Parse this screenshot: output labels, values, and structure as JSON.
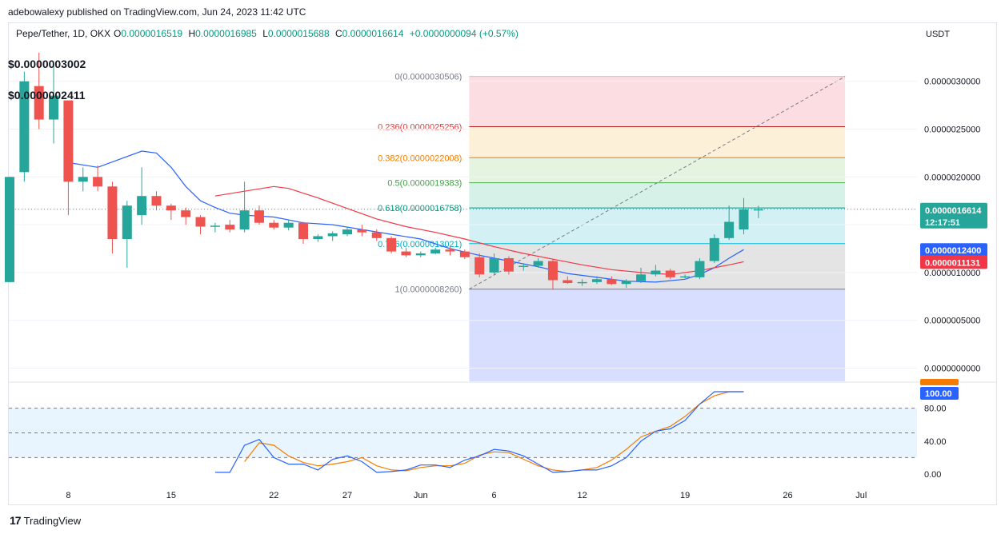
{
  "header": {
    "published": "adebowalexy published on TradingView.com, Jun 24, 2023 11:42 UTC"
  },
  "legend": {
    "symbol": "Pepe/Tether, 1D, OKX",
    "o_label": "O",
    "o_value": "0.0000016519",
    "h_label": "H",
    "h_value": "0.0000016985",
    "l_label": "L",
    "l_value": "0.0000015688",
    "c_label": "C",
    "c_value": "0.0000016614",
    "change": "+0.0000000094 (+0.57%)",
    "ind1": "$0.0000003002",
    "ind2": "$0.0000002411"
  },
  "currency": "USDT",
  "footer": {
    "brand": "TradingView",
    "icon": "tradingview-logo-icon"
  },
  "colors": {
    "up": "#26a69a",
    "down": "#ef5350",
    "ma_blue": "#2962ff",
    "ma_red": "#f23645",
    "stoch_k": "#2962ff",
    "stoch_d": "#f57c00"
  },
  "price_labels": {
    "last": "0.0000016614",
    "countdown": "12:17:51",
    "blue_ma": "0.0000012400",
    "red_ma": "0.0000011131"
  },
  "osc_label": "100.00",
  "chart_data": {
    "type": "candlestick",
    "price_axis": {
      "ticks": [
        {
          "value": 3.0,
          "label": "0.0000030000"
        },
        {
          "value": 2.5,
          "label": "0.0000025000"
        },
        {
          "value": 2.0,
          "label": "0.0000020000"
        },
        {
          "value": 1.5,
          "label": "0.0000015000"
        },
        {
          "value": 1.0,
          "label": "0.0000010000"
        },
        {
          "value": 0.5,
          "label": "0.0000005000"
        },
        {
          "value": 0.0,
          "label": "0.0000000000"
        }
      ]
    },
    "time_axis": {
      "ticks": [
        {
          "i": 4,
          "label": "8"
        },
        {
          "i": 11,
          "label": "15"
        },
        {
          "i": 18,
          "label": "22"
        },
        {
          "i": 23,
          "label": "27"
        },
        {
          "i": 28,
          "label": "Jun"
        },
        {
          "i": 33,
          "label": "6"
        },
        {
          "i": 39,
          "label": "12"
        },
        {
          "i": 46,
          "label": "19"
        },
        {
          "i": 53,
          "label": "26"
        },
        {
          "i": 58,
          "label": "Jul"
        }
      ]
    },
    "candles_note": "o/h/l/c in units of 1e-6 USDT",
    "candles": [
      {
        "o": 0.9,
        "h": 2.0,
        "l": 0.9,
        "c": 2.0
      },
      {
        "o": 2.05,
        "h": 3.1,
        "l": 1.95,
        "c": 3.0
      },
      {
        "o": 2.95,
        "h": 3.3,
        "l": 2.5,
        "c": 2.6
      },
      {
        "o": 2.6,
        "h": 3.2,
        "l": 2.35,
        "c": 2.85
      },
      {
        "o": 2.8,
        "h": 2.8,
        "l": 1.6,
        "c": 1.95
      },
      {
        "o": 1.95,
        "h": 2.1,
        "l": 1.85,
        "c": 2.0
      },
      {
        "o": 2.0,
        "h": 2.12,
        "l": 1.85,
        "c": 1.9
      },
      {
        "o": 1.9,
        "h": 1.95,
        "l": 1.2,
        "c": 1.35
      },
      {
        "o": 1.35,
        "h": 1.75,
        "l": 1.05,
        "c": 1.7
      },
      {
        "o": 1.6,
        "h": 2.1,
        "l": 1.5,
        "c": 1.8
      },
      {
        "o": 1.8,
        "h": 1.85,
        "l": 1.65,
        "c": 1.7
      },
      {
        "o": 1.7,
        "h": 1.72,
        "l": 1.55,
        "c": 1.65
      },
      {
        "o": 1.65,
        "h": 1.68,
        "l": 1.5,
        "c": 1.58
      },
      {
        "o": 1.58,
        "h": 1.6,
        "l": 1.4,
        "c": 1.48
      },
      {
        "o": 1.48,
        "h": 1.52,
        "l": 1.42,
        "c": 1.49
      },
      {
        "o": 1.5,
        "h": 1.55,
        "l": 1.42,
        "c": 1.45
      },
      {
        "o": 1.45,
        "h": 1.95,
        "l": 1.42,
        "c": 1.65
      },
      {
        "o": 1.65,
        "h": 1.7,
        "l": 1.5,
        "c": 1.52
      },
      {
        "o": 1.52,
        "h": 1.55,
        "l": 1.45,
        "c": 1.47
      },
      {
        "o": 1.47,
        "h": 1.55,
        "l": 1.44,
        "c": 1.52
      },
      {
        "o": 1.52,
        "h": 1.53,
        "l": 1.3,
        "c": 1.35
      },
      {
        "o": 1.35,
        "h": 1.4,
        "l": 1.32,
        "c": 1.38
      },
      {
        "o": 1.38,
        "h": 1.43,
        "l": 1.33,
        "c": 1.41
      },
      {
        "o": 1.4,
        "h": 1.48,
        "l": 1.38,
        "c": 1.45
      },
      {
        "o": 1.45,
        "h": 1.5,
        "l": 1.38,
        "c": 1.42
      },
      {
        "o": 1.42,
        "h": 1.45,
        "l": 1.33,
        "c": 1.36
      },
      {
        "o": 1.36,
        "h": 1.38,
        "l": 1.2,
        "c": 1.22
      },
      {
        "o": 1.22,
        "h": 1.26,
        "l": 1.16,
        "c": 1.18
      },
      {
        "o": 1.18,
        "h": 1.22,
        "l": 1.16,
        "c": 1.2
      },
      {
        "o": 1.2,
        "h": 1.26,
        "l": 1.19,
        "c": 1.24
      },
      {
        "o": 1.24,
        "h": 1.27,
        "l": 1.18,
        "c": 1.22
      },
      {
        "o": 1.22,
        "h": 1.24,
        "l": 1.14,
        "c": 1.16
      },
      {
        "o": 1.16,
        "h": 1.2,
        "l": 0.95,
        "c": 0.98
      },
      {
        "o": 1.0,
        "h": 1.2,
        "l": 0.97,
        "c": 1.15
      },
      {
        "o": 1.15,
        "h": 1.17,
        "l": 0.98,
        "c": 1.01
      },
      {
        "o": 1.06,
        "h": 1.09,
        "l": 1.02,
        "c": 1.07
      },
      {
        "o": 1.07,
        "h": 1.15,
        "l": 1.05,
        "c": 1.12
      },
      {
        "o": 1.12,
        "h": 1.14,
        "l": 0.82,
        "c": 0.92
      },
      {
        "o": 0.92,
        "h": 0.96,
        "l": 0.88,
        "c": 0.89
      },
      {
        "o": 0.89,
        "h": 0.93,
        "l": 0.86,
        "c": 0.9
      },
      {
        "o": 0.9,
        "h": 0.96,
        "l": 0.88,
        "c": 0.93
      },
      {
        "o": 0.93,
        "h": 0.96,
        "l": 0.87,
        "c": 0.88
      },
      {
        "o": 0.88,
        "h": 0.93,
        "l": 0.84,
        "c": 0.91
      },
      {
        "o": 0.91,
        "h": 1.05,
        "l": 0.89,
        "c": 0.98
      },
      {
        "o": 0.98,
        "h": 1.08,
        "l": 0.96,
        "c": 1.02
      },
      {
        "o": 1.02,
        "h": 1.04,
        "l": 0.93,
        "c": 0.95
      },
      {
        "o": 0.95,
        "h": 0.98,
        "l": 0.94,
        "c": 0.96
      },
      {
        "o": 0.95,
        "h": 1.15,
        "l": 0.93,
        "c": 1.12
      },
      {
        "o": 1.12,
        "h": 1.4,
        "l": 1.1,
        "c": 1.36
      },
      {
        "o": 1.36,
        "h": 1.7,
        "l": 1.34,
        "c": 1.53
      },
      {
        "o": 1.45,
        "h": 1.78,
        "l": 1.4,
        "c": 1.66
      },
      {
        "o": 1.6519,
        "h": 1.6985,
        "l": 1.5688,
        "c": 1.6614
      }
    ],
    "ma_blue_series": [
      [
        4,
        2.15
      ],
      [
        6,
        2.1
      ],
      [
        9,
        2.27
      ],
      [
        10,
        2.25
      ],
      [
        11,
        2.1
      ],
      [
        12,
        1.9
      ],
      [
        13,
        1.75
      ],
      [
        14,
        1.68
      ],
      [
        15,
        1.62
      ],
      [
        16,
        1.6
      ],
      [
        18,
        1.58
      ],
      [
        20,
        1.52
      ],
      [
        22,
        1.5
      ],
      [
        24,
        1.45
      ],
      [
        26,
        1.4
      ],
      [
        28,
        1.35
      ],
      [
        30,
        1.25
      ],
      [
        32,
        1.18
      ],
      [
        34,
        1.12
      ],
      [
        36,
        1.06
      ],
      [
        38,
        0.99
      ],
      [
        40,
        0.95
      ],
      [
        42,
        0.91
      ],
      [
        44,
        0.9
      ],
      [
        46,
        0.93
      ],
      [
        47,
        0.98
      ],
      [
        48,
        1.05
      ],
      [
        49,
        1.15
      ],
      [
        50,
        1.24
      ]
    ],
    "ma_red_series": [
      [
        14,
        1.8
      ],
      [
        16,
        1.85
      ],
      [
        18,
        1.9
      ],
      [
        19,
        1.88
      ],
      [
        21,
        1.78
      ],
      [
        23,
        1.67
      ],
      [
        25,
        1.56
      ],
      [
        27,
        1.48
      ],
      [
        29,
        1.42
      ],
      [
        31,
        1.35
      ],
      [
        33,
        1.27
      ],
      [
        35,
        1.2
      ],
      [
        37,
        1.14
      ],
      [
        39,
        1.08
      ],
      [
        41,
        1.03
      ],
      [
        43,
        1.0
      ],
      [
        45,
        0.98
      ],
      [
        47,
        1.02
      ],
      [
        49,
        1.08
      ],
      [
        50,
        1.113
      ]
    ],
    "fib": {
      "levels": [
        {
          "ratio": "0",
          "value": 3.0506,
          "label": "0(0.0000030506)",
          "fill": "#fcdde1",
          "line": "#c5c5c5",
          "text_color": "#787b86"
        },
        {
          "ratio": "0.236",
          "value": 2.5256,
          "label": "0.236(0.0000025256)",
          "fill": "#fdf0d9",
          "line": "#b71c1c",
          "text_color": "#e03b3b"
        },
        {
          "ratio": "0.382",
          "value": 2.2008,
          "label": "0.382(0.0000022008)",
          "fill": "#e5f4e1",
          "line": "#f57c00",
          "text_color": "#f57c00"
        },
        {
          "ratio": "0.5",
          "value": 1.9383,
          "label": "0.5(0.0000019383)",
          "fill": "#d6f1e8",
          "line": "#4caf50",
          "text_color": "#43a047"
        },
        {
          "ratio": "0.618",
          "value": 1.6758,
          "label": "0.618(0.0000016758)",
          "fill": "#d3f1f5",
          "line": "#009688",
          "text_color": "#089981"
        },
        {
          "ratio": "0.786",
          "value": 1.3021,
          "label": "0.786(0.0000013021)",
          "fill": "#e4e4e4",
          "line": "#00bcd4",
          "text_color": "#00acc1"
        },
        {
          "ratio": "1",
          "value": 0.826,
          "label": "1(0.0000008260)",
          "fill": "#d7deff",
          "line": "#787b86",
          "text_color": "#787b86"
        }
      ],
      "start_index": 31.3,
      "end_index": 56.9
    },
    "stochastic": {
      "axis_ticks": [
        {
          "value": 80,
          "label": "80.00"
        },
        {
          "value": 40,
          "label": "40.00"
        },
        {
          "value": 0,
          "label": "0.00"
        }
      ],
      "band": [
        20,
        80
      ],
      "mid": 50,
      "k": [
        [
          14,
          2
        ],
        [
          15,
          2
        ],
        [
          16,
          35
        ],
        [
          17,
          42
        ],
        [
          18,
          20
        ],
        [
          19,
          12
        ],
        [
          20,
          12
        ],
        [
          21,
          5
        ],
        [
          22,
          18
        ],
        [
          23,
          22
        ],
        [
          24,
          15
        ],
        [
          25,
          2
        ],
        [
          26,
          3
        ],
        [
          27,
          5
        ],
        [
          28,
          11
        ],
        [
          29,
          11
        ],
        [
          30,
          8
        ],
        [
          31,
          17
        ],
        [
          32,
          22
        ],
        [
          33,
          30
        ],
        [
          34,
          28
        ],
        [
          35,
          22
        ],
        [
          36,
          12
        ],
        [
          37,
          2
        ],
        [
          38,
          3
        ],
        [
          39,
          5
        ],
        [
          40,
          5
        ],
        [
          41,
          10
        ],
        [
          42,
          20
        ],
        [
          43,
          40
        ],
        [
          44,
          52
        ],
        [
          45,
          55
        ],
        [
          46,
          65
        ],
        [
          47,
          85
        ],
        [
          48,
          100
        ],
        [
          49,
          100
        ],
        [
          50,
          100
        ]
      ],
      "d": [
        [
          16,
          15
        ],
        [
          17,
          38
        ],
        [
          18,
          35
        ],
        [
          19,
          22
        ],
        [
          20,
          14
        ],
        [
          21,
          10
        ],
        [
          22,
          12
        ],
        [
          23,
          15
        ],
        [
          24,
          20
        ],
        [
          25,
          10
        ],
        [
          26,
          5
        ],
        [
          27,
          4
        ],
        [
          28,
          8
        ],
        [
          29,
          10
        ],
        [
          30,
          10
        ],
        [
          31,
          13
        ],
        [
          32,
          23
        ],
        [
          33,
          27
        ],
        [
          34,
          26
        ],
        [
          35,
          18
        ],
        [
          36,
          10
        ],
        [
          37,
          5
        ],
        [
          38,
          3
        ],
        [
          39,
          5
        ],
        [
          40,
          8
        ],
        [
          41,
          17
        ],
        [
          42,
          30
        ],
        [
          43,
          45
        ],
        [
          44,
          52
        ],
        [
          45,
          58
        ],
        [
          46,
          70
        ],
        [
          47,
          85
        ],
        [
          48,
          95
        ],
        [
          49,
          100
        ],
        [
          50,
          100
        ]
      ]
    }
  }
}
